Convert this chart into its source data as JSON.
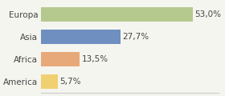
{
  "categories": [
    "Europa",
    "Asia",
    "Africa",
    "America"
  ],
  "values": [
    53.0,
    27.7,
    13.5,
    5.7
  ],
  "labels": [
    "53,0%",
    "27,7%",
    "13,5%",
    "5,7%"
  ],
  "bar_colors": [
    "#b5c98e",
    "#6e8fc0",
    "#e8a97a",
    "#f0d070"
  ],
  "background_color": "#f5f5f0",
  "xlim": [
    0,
    62
  ],
  "label_fontsize": 7.5,
  "category_fontsize": 7.5
}
